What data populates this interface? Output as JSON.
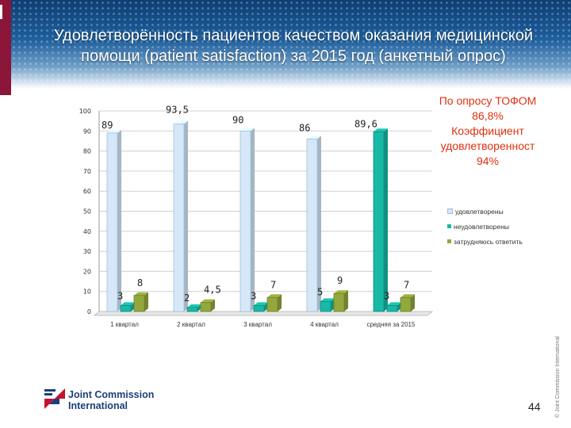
{
  "slide": {
    "title": "Удовлетворённость пациентов качеством оказания медицинской помощи (patient satisfaction) за 2015 год (анкетный опрос)",
    "note_lines": [
      "По опросу ТОФОМ",
      "86,8%",
      "Коэффициент",
      "удовлетворенност",
      "94%"
    ],
    "logo_line1": "Joint Commission",
    "logo_line2": "International",
    "page_number": "44",
    "copyright": "© Joint Commission International"
  },
  "colors": {
    "satisfied": "#d6e8f7",
    "unsatisfied": "#18b9a6",
    "undecided": "#93a83c",
    "note_red": "#e03010",
    "logo_blue": "#1b3f7a",
    "logo_red": "#c8102e"
  },
  "chart_data": {
    "type": "bar",
    "categories": [
      "1 квартал",
      "2 квартал",
      "3 квартал",
      "4 квартал",
      "средняя за 2015"
    ],
    "series": [
      {
        "name": "удовлетворены",
        "values": [
          89,
          93.5,
          90,
          86,
          89.6
        ],
        "labels": [
          "89",
          "93,5",
          "90",
          "86",
          "89,6"
        ]
      },
      {
        "name": "неудовлетворены",
        "values": [
          3,
          2,
          3,
          5,
          3
        ],
        "labels": [
          "3",
          "2",
          "3",
          "5",
          "3"
        ]
      },
      {
        "name": "затрудняюсь ответить",
        "values": [
          8,
          4.5,
          7,
          9,
          7
        ],
        "labels": [
          "8",
          "4,5",
          "7",
          "9",
          "7"
        ]
      }
    ],
    "highlight": {
      "series": 0,
      "category": 4,
      "color": "#18b9a6"
    },
    "ylim": [
      0,
      100
    ],
    "yticks": [
      0,
      10,
      20,
      30,
      40,
      50,
      60,
      70,
      80,
      90,
      100
    ],
    "grid": true,
    "legend_position": "right"
  }
}
